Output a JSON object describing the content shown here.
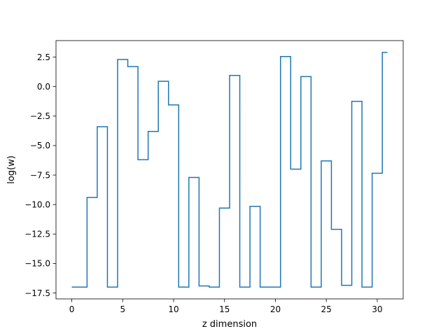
{
  "chart_data": {
    "type": "line",
    "drawstyle": "steps-mid",
    "xlabel": "z dimension",
    "ylabel": "log(w)",
    "xlim": [
      -1.55,
      32.55
    ],
    "ylim": [
      -18.0,
      3.9
    ],
    "xticks": [
      0,
      5,
      10,
      15,
      20,
      25,
      30
    ],
    "xtick_labels": [
      "0",
      "5",
      "10",
      "15",
      "20",
      "25",
      "30"
    ],
    "yticks": [
      2.5,
      0.0,
      -2.5,
      -5.0,
      -7.5,
      -10.0,
      -12.5,
      -15.0,
      -17.5
    ],
    "ytick_labels": [
      "2.5",
      "0.0",
      "−2.5",
      "−5.0",
      "−7.5",
      "−10.0",
      "−12.5",
      "−15.0",
      "−17.5"
    ],
    "grid": false,
    "series": [
      {
        "color": "#1f77b4",
        "x": [
          0,
          1,
          2,
          3,
          4,
          5,
          6,
          7,
          8,
          9,
          10,
          11,
          12,
          13,
          14,
          15,
          16,
          17,
          18,
          19,
          20,
          21,
          22,
          23,
          24,
          25,
          26,
          27,
          28,
          29,
          30,
          31
        ],
        "y": [
          -17.0,
          -17.0,
          -9.4,
          -3.4,
          -17.0,
          2.3,
          1.7,
          -6.2,
          -3.8,
          0.45,
          -1.55,
          -17.0,
          -7.7,
          -16.9,
          -17.0,
          -10.3,
          0.95,
          -17.0,
          -10.15,
          -17.0,
          -17.0,
          2.55,
          -7.0,
          0.85,
          -17.0,
          -6.3,
          -12.1,
          -16.85,
          -1.25,
          -17.0,
          -7.35,
          2.9
        ]
      }
    ]
  }
}
